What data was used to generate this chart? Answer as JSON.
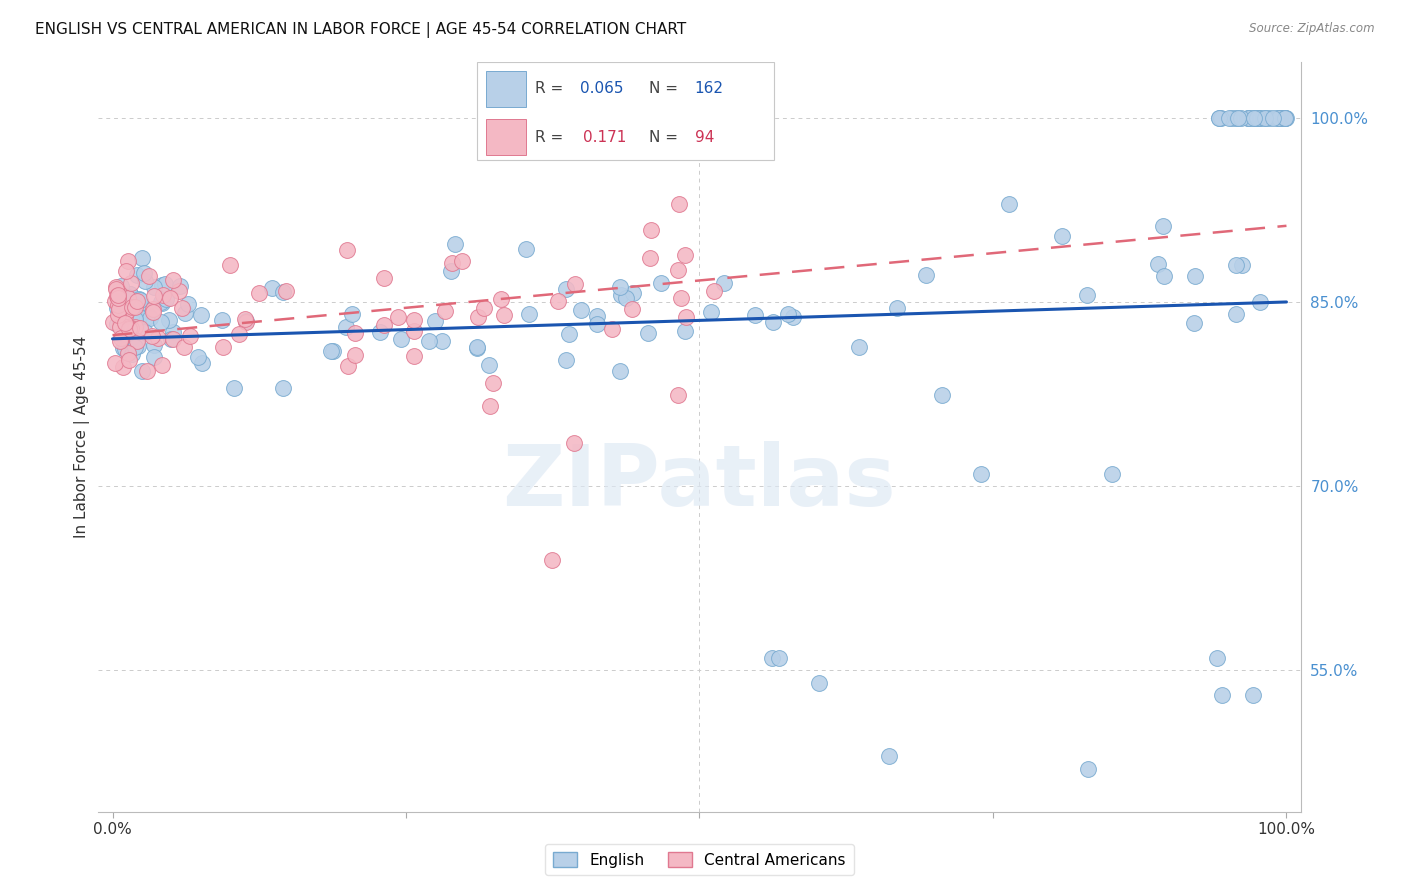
{
  "title": "ENGLISH VS CENTRAL AMERICAN IN LABOR FORCE | AGE 45-54 CORRELATION CHART",
  "source": "Source: ZipAtlas.com",
  "ylabel": "In Labor Force | Age 45-54",
  "legend_english": "English",
  "legend_ca": "Central Americans",
  "R_english": 0.065,
  "N_english": 162,
  "R_ca": 0.171,
  "N_ca": 94,
  "watermark": "ZIPatlas",
  "right_ytick_labels": [
    "55.0%",
    "70.0%",
    "85.0%",
    "100.0%"
  ],
  "right_ytick_values": [
    0.55,
    0.7,
    0.85,
    1.0
  ],
  "blue_fill": "#b8d0e8",
  "blue_edge": "#78aad0",
  "pink_fill": "#f4b8c4",
  "pink_edge": "#e07890",
  "blue_line": "#1a55b0",
  "pink_line": "#e06878",
  "ymin": 0.435,
  "ymax": 1.045,
  "xmin": -0.012,
  "xmax": 1.012
}
